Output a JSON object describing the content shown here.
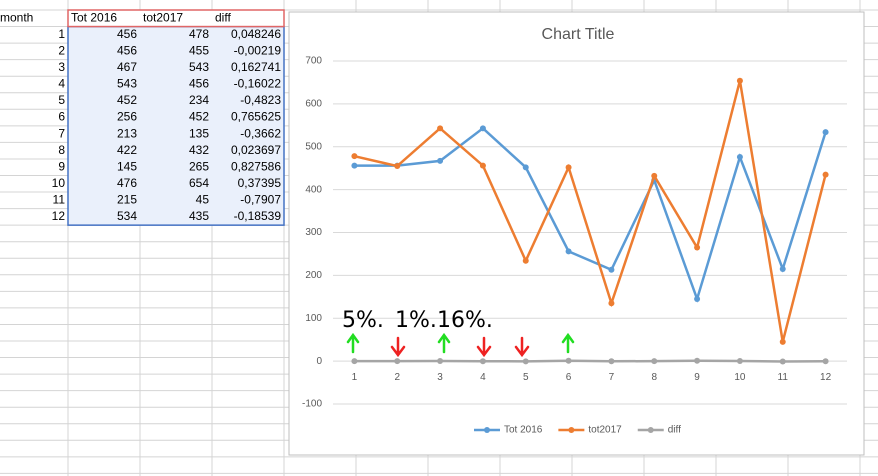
{
  "table": {
    "header": [
      "month",
      "Tot 2016",
      "tot2017",
      "diff"
    ],
    "rows": [
      [
        "1",
        "456",
        "478",
        "0,048246"
      ],
      [
        "2",
        "456",
        "455",
        "-0,00219"
      ],
      [
        "3",
        "467",
        "543",
        "0,162741"
      ],
      [
        "4",
        "543",
        "456",
        "-0,16022"
      ],
      [
        "5",
        "452",
        "234",
        "-0,4823"
      ],
      [
        "6",
        "256",
        "452",
        "0,765625"
      ],
      [
        "7",
        "213",
        "135",
        "-0,3662"
      ],
      [
        "8",
        "422",
        "432",
        "0,023697"
      ],
      [
        "9",
        "145",
        "265",
        "0,827586"
      ],
      [
        "10",
        "476",
        "654",
        "0,37395"
      ],
      [
        "11",
        "215",
        "45",
        "-0,7907"
      ],
      [
        "12",
        "534",
        "435",
        "-0,18539"
      ]
    ]
  },
  "chart_data": {
    "type": "line",
    "title": "Chart Title",
    "categories": [
      "1",
      "2",
      "3",
      "4",
      "5",
      "6",
      "7",
      "8",
      "9",
      "10",
      "11",
      "12"
    ],
    "series": [
      {
        "name": "Tot 2016",
        "color": "#5b9bd5",
        "values": [
          456,
          456,
          467,
          543,
          452,
          256,
          213,
          422,
          145,
          476,
          215,
          534
        ]
      },
      {
        "name": "tot2017",
        "color": "#ed7d31",
        "values": [
          478,
          455,
          543,
          456,
          234,
          452,
          135,
          432,
          265,
          654,
          45,
          435
        ]
      },
      {
        "name": "diff",
        "color": "#a5a5a5",
        "values": [
          0.048246,
          -0.00219,
          0.162741,
          -0.16022,
          -0.4823,
          0.765625,
          -0.3662,
          0.023697,
          0.827586,
          0.37395,
          -0.7907,
          -0.18539
        ]
      }
    ],
    "ylim": [
      -100,
      700
    ],
    "yticks": [
      -100,
      0,
      100,
      200,
      300,
      400,
      500,
      600,
      700
    ],
    "grid": true,
    "annotations": [
      "5%.",
      "1%.",
      "16%."
    ],
    "legend": "bottom"
  }
}
